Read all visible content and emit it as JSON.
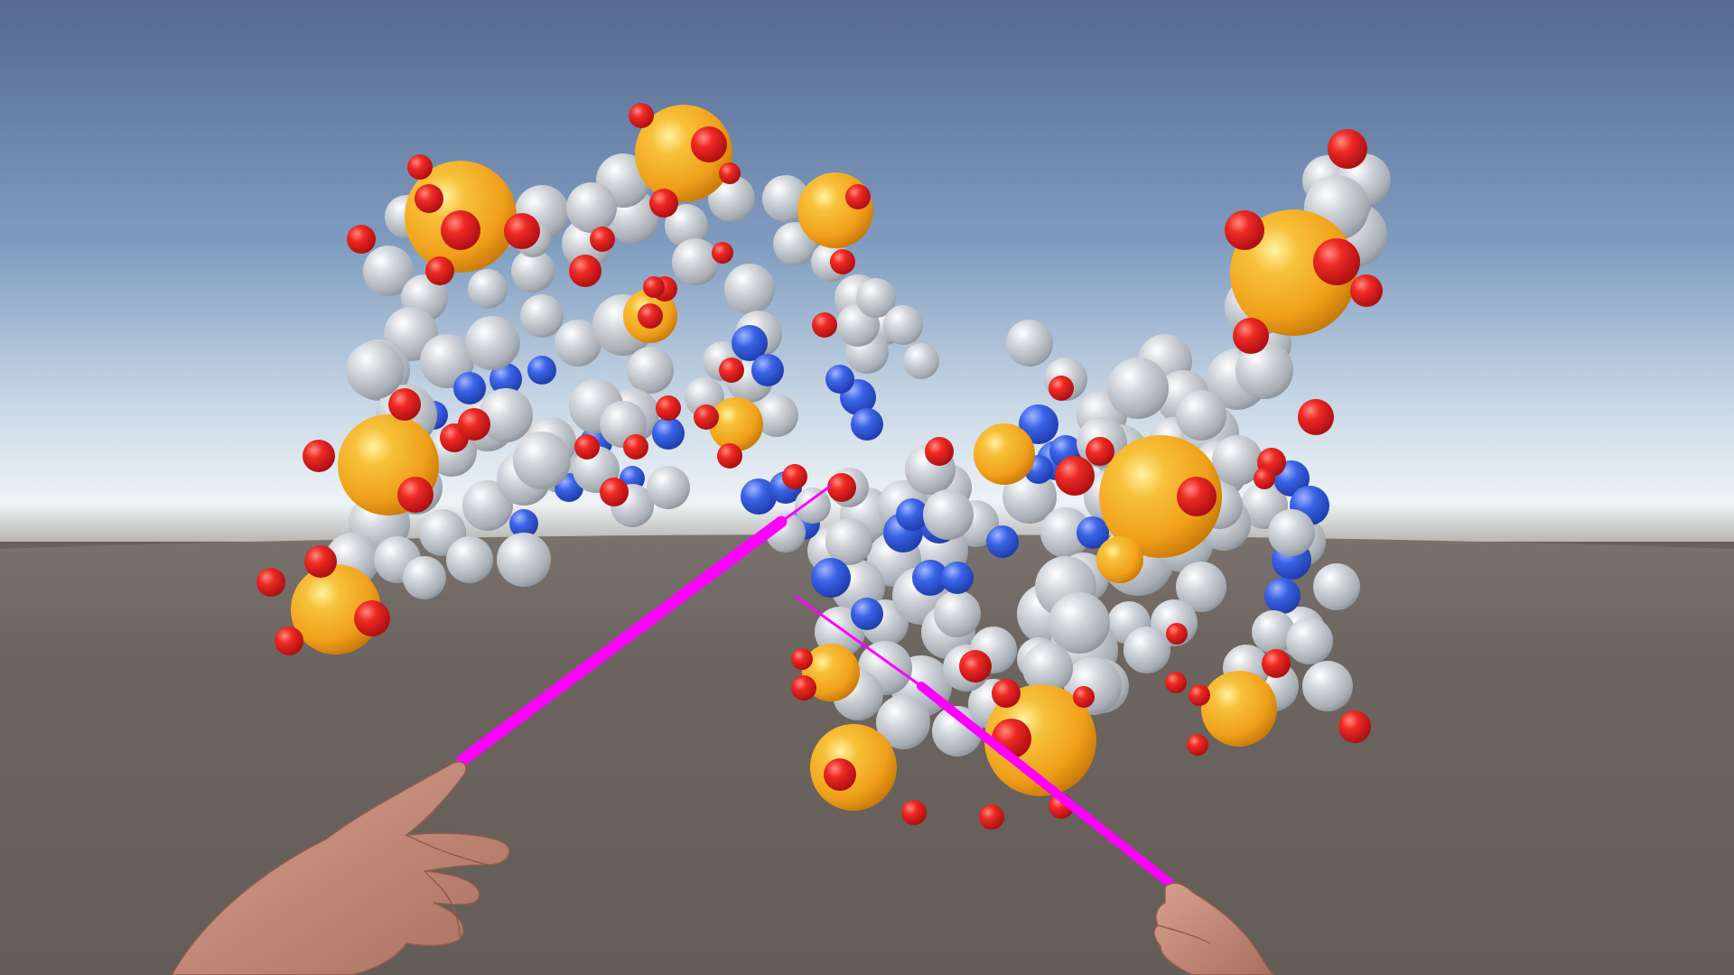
{
  "colors": {
    "sky_top": "#56698f",
    "sky_mid": "#8aa6c6",
    "horizon": "#eef3f6",
    "ground": "#6a625d",
    "ground_far": "#7a726c",
    "phosphorus": "#f2a11a",
    "oxygen": "#e0141a",
    "carbon": "#b8bcc2",
    "nitrogen": "#2f57e0",
    "laser": "#ff00ff",
    "skin": "#c98c78"
  },
  "scene": {
    "type": "vr-molecule-viewer",
    "molecule_atoms_shown": [
      "phosphorus",
      "oxygen",
      "carbon",
      "nitrogen"
    ],
    "controllers": [
      "left-hand",
      "right-hand"
    ],
    "pointer": "laser"
  }
}
